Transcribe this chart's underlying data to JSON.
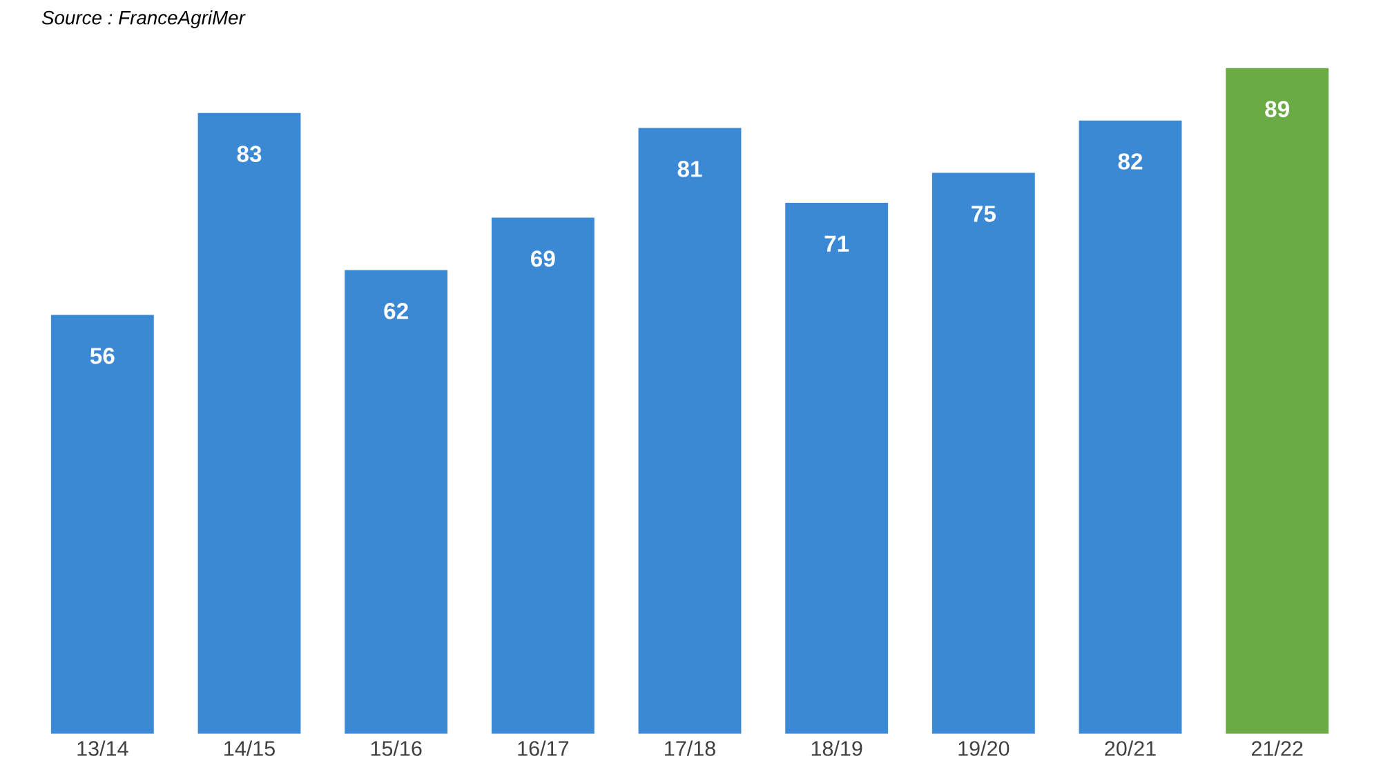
{
  "chart_data": {
    "type": "bar",
    "annotations": [
      "Source : FranceAgriMer"
    ],
    "categories": [
      "13/14",
      "14/15",
      "15/16",
      "16/17",
      "17/18",
      "18/19",
      "19/20",
      "20/21",
      "21/22"
    ],
    "values": [
      56,
      83,
      62,
      69,
      81,
      71,
      75,
      82,
      89
    ],
    "colors": [
      "#3b88d5",
      "#3b88d5",
      "#3b88d5",
      "#3b88d5",
      "#3b88d5",
      "#3b88d5",
      "#3b88d5",
      "#3b88d5",
      "#6aab45"
    ],
    "data_labels": true,
    "grid": false,
    "legend": false
  }
}
